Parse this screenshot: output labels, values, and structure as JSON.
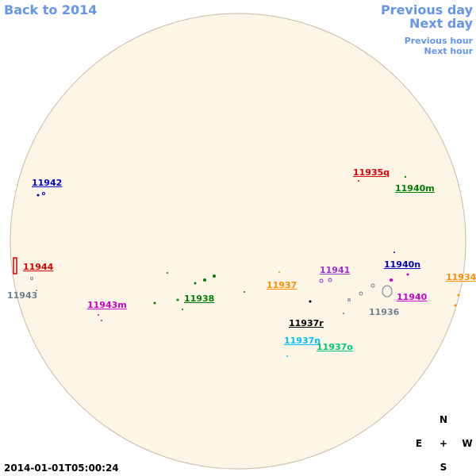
{
  "nav": {
    "back": "Back to 2014",
    "previous_day": "Previous day",
    "next_day": "Next day",
    "previous_hour": "Previous hour",
    "next_hour": "Next hour"
  },
  "timestamp": "2014-01-01T05:00:24",
  "compass": {
    "north": "N",
    "east": "E",
    "center": "+",
    "west": "W",
    "south": "S"
  },
  "regions": [
    {
      "label": "11942",
      "color": "#0000cc"
    },
    {
      "label": "11935q",
      "color": "#dd0000"
    },
    {
      "label": "11940m",
      "color": "#008000"
    },
    {
      "label": "11944",
      "color": "#dd0000"
    },
    {
      "label": "11943",
      "color": "#708090"
    },
    {
      "label": "11943m",
      "color": "#cc00cc"
    },
    {
      "label": "11938",
      "color": "#008000"
    },
    {
      "label": "11937",
      "color": "#ff8c00"
    },
    {
      "label": "11941",
      "color": "#9932cc"
    },
    {
      "label": "11940n",
      "color": "#0000cc"
    },
    {
      "label": "11934",
      "color": "#ff8c00"
    },
    {
      "label": "11940",
      "color": "#cc00cc"
    },
    {
      "label": "11936",
      "color": "#708090"
    },
    {
      "label": "11937r",
      "color": "#000000"
    },
    {
      "label": "11937n",
      "color": "#00bfff"
    },
    {
      "label": "11937o",
      "color": "#00c878"
    }
  ]
}
